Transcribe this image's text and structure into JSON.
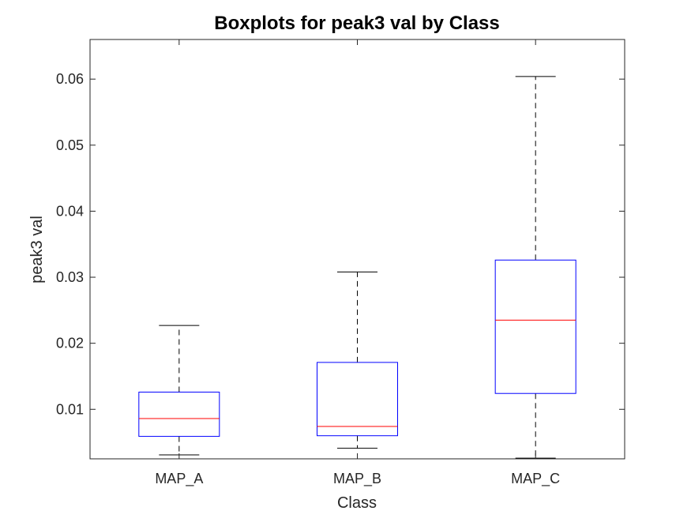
{
  "chart_data": {
    "type": "boxplot",
    "title": "Boxplots for peak3 val by Class",
    "xlabel": "Class",
    "ylabel": "peak3 val",
    "categories": [
      "MAP_A",
      "MAP_B",
      "MAP_C"
    ],
    "ylim": [
      0.0025,
      0.066
    ],
    "yticks": [
      0.01,
      0.02,
      0.03,
      0.04,
      0.05,
      0.06
    ],
    "ytick_labels": [
      "0.01",
      "0.02",
      "0.03",
      "0.04",
      "0.05",
      "0.06"
    ],
    "boxes": [
      {
        "category": "MAP_A",
        "whisker_low": 0.0031,
        "q1": 0.0059,
        "median": 0.0086,
        "q3": 0.0126,
        "whisker_high": 0.0227
      },
      {
        "category": "MAP_B",
        "whisker_low": 0.0041,
        "q1": 0.006,
        "median": 0.0074,
        "q3": 0.0171,
        "whisker_high": 0.0308
      },
      {
        "category": "MAP_C",
        "whisker_low": 0.0026,
        "q1": 0.0124,
        "median": 0.0235,
        "q3": 0.0326,
        "whisker_high": 0.0604
      }
    ],
    "grid": false,
    "colors": {
      "box": "#0000ff",
      "median": "#ff0000",
      "whisker": "#000000",
      "axis": "#262626"
    }
  }
}
